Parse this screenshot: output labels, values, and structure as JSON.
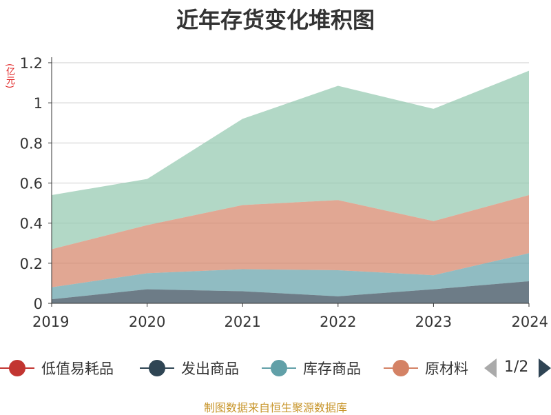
{
  "unit_label": "(亿元)",
  "source": "制图数据来自恒生聚源数据库",
  "pager": {
    "text": "1/2"
  },
  "legend": [
    {
      "name": "低值易耗品",
      "color": "#c23531"
    },
    {
      "name": "发出商品",
      "color": "#2f4554"
    },
    {
      "name": "库存商品",
      "color": "#61a0a8"
    },
    {
      "name": "原材料",
      "color": "#d48265"
    }
  ],
  "chart_data": {
    "type": "area",
    "stacked": true,
    "title": "近年存货变化堆积图",
    "xlabel": "",
    "ylabel": "(亿元)",
    "categories": [
      "2019",
      "2020",
      "2021",
      "2022",
      "2023",
      "2024"
    ],
    "ylim": [
      0,
      1.2
    ],
    "yticks": [
      0,
      0.2,
      0.4,
      0.6,
      0.8,
      1,
      1.2
    ],
    "ytick_labels": [
      "0",
      "0.2",
      "0.4",
      "0.6",
      "0.8",
      "1",
      "1.2"
    ],
    "grid": true,
    "legend_position": "bottom",
    "series": [
      {
        "name": "低值易耗品",
        "color": "#c23531",
        "values": [
          0,
          0,
          0,
          0,
          0,
          0
        ]
      },
      {
        "name": "发出商品",
        "color": "#2f4554",
        "values": [
          0.02,
          0.07,
          0.06,
          0.035,
          0.07,
          0.11
        ]
      },
      {
        "name": "库存商品",
        "color": "#61a0a8",
        "values": [
          0.06,
          0.08,
          0.11,
          0.13,
          0.07,
          0.14
        ]
      },
      {
        "name": "原材料",
        "color": "#d48265",
        "values": [
          0.19,
          0.24,
          0.32,
          0.35,
          0.27,
          0.29
        ]
      },
      {
        "color": "#91c7ae",
        "values": [
          0.27,
          0.23,
          0.43,
          0.57,
          0.56,
          0.62
        ]
      }
    ]
  }
}
